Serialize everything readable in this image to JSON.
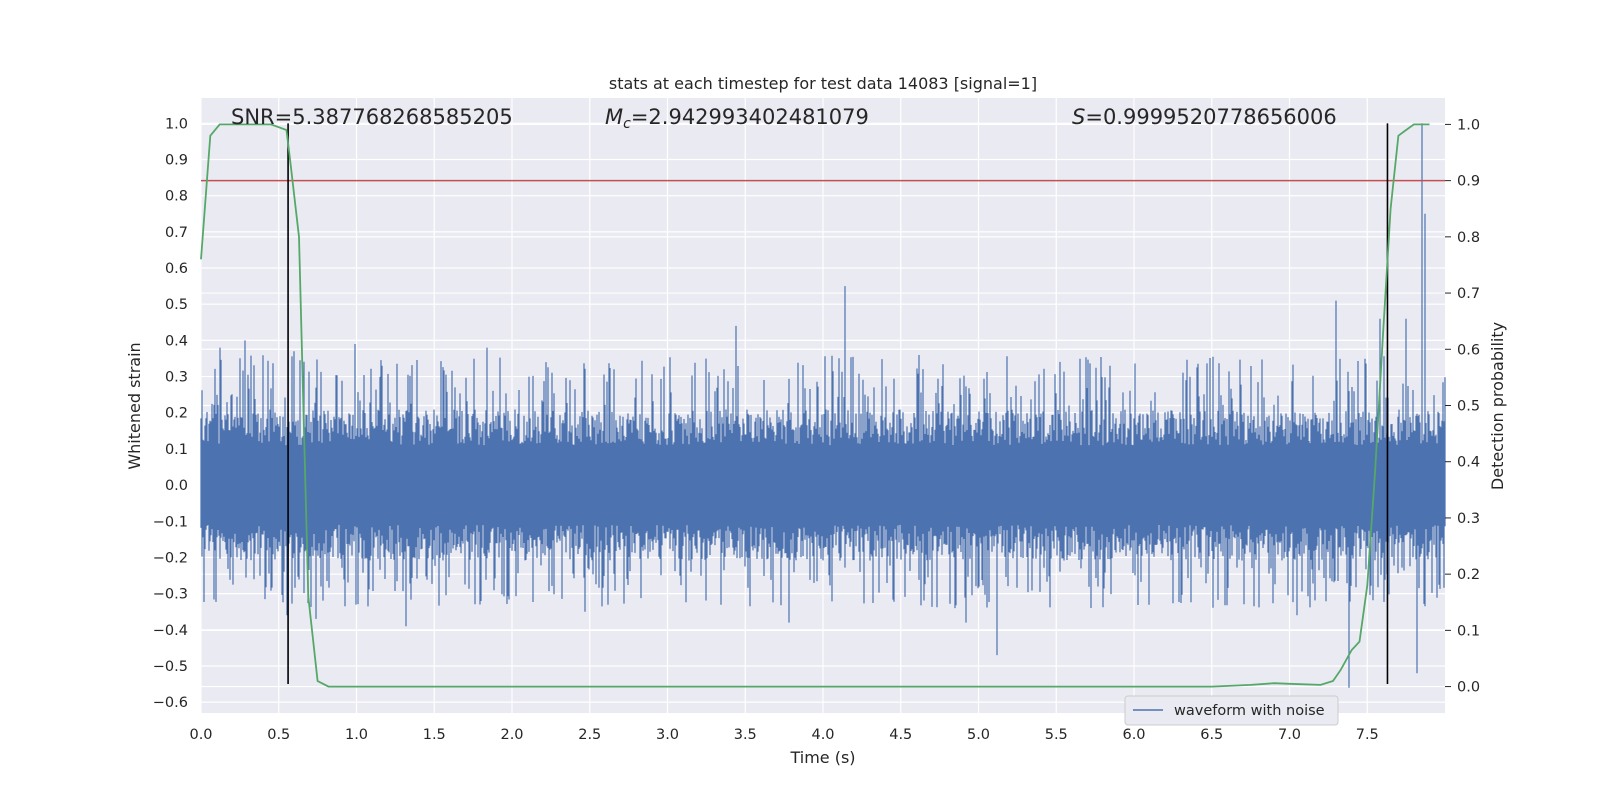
{
  "chart_data": {
    "type": "line",
    "title": "stats at each timestep for test data 14083 [signal=1]",
    "xlabel": "Time (s)",
    "ylabel": "Whitened strain",
    "y2label": "Detection probability",
    "xlim": [
      0.0,
      8.0
    ],
    "ylim": [
      -0.63,
      1.07
    ],
    "y2lim": [
      -0.047,
      1.047
    ],
    "xticks": [
      "0.0",
      "0.5",
      "1.0",
      "1.5",
      "2.0",
      "2.5",
      "3.0",
      "3.5",
      "4.0",
      "4.5",
      "5.0",
      "5.5",
      "6.0",
      "6.5",
      "7.0",
      "7.5"
    ],
    "yticks": [
      "−0.6",
      "−0.5",
      "−0.4",
      "−0.3",
      "−0.2",
      "−0.1",
      "0.0",
      "0.1",
      "0.2",
      "0.3",
      "0.4",
      "0.5",
      "0.6",
      "0.7",
      "0.8",
      "0.9",
      "1.0"
    ],
    "y2ticks": [
      "0.0",
      "0.1",
      "0.2",
      "0.3",
      "0.4",
      "0.5",
      "0.6",
      "0.7",
      "0.8",
      "0.9",
      "1.0"
    ],
    "grid": true,
    "legend": {
      "placement": "lower-right",
      "entries": [
        "waveform with noise"
      ]
    },
    "annotations": {
      "snr": "SNR=5.387768268585205",
      "mc_symbol": "M",
      "mc_sub": "c",
      "mc_value": "=2.942993402481079",
      "s_symbol": "S",
      "s_value": "=0.9999520778656006"
    },
    "threshold_line": {
      "axis": "y2",
      "value": 0.9,
      "color": "#c44e52"
    },
    "vertical_markers": {
      "x": [
        0.56,
        7.63
      ],
      "ymin": -0.55,
      "ymax": 1.0,
      "color": "#000000"
    },
    "series": [
      {
        "name": "waveform with noise",
        "axis": "y",
        "color": "#4c72b0",
        "noise": {
          "typical_amplitude": 0.11,
          "spike_amplitude": 0.22
        },
        "spikes": [
          {
            "x": 0.12,
            "y": 0.38
          },
          {
            "x": 0.28,
            "y": 0.4
          },
          {
            "x": 0.55,
            "y": -0.36
          },
          {
            "x": 0.6,
            "y": 0.37
          },
          {
            "x": 0.74,
            "y": -0.37
          },
          {
            "x": 0.99,
            "y": 0.39
          },
          {
            "x": 1.32,
            "y": -0.39
          },
          {
            "x": 1.84,
            "y": 0.38
          },
          {
            "x": 2.47,
            "y": -0.35
          },
          {
            "x": 3.44,
            "y": 0.44
          },
          {
            "x": 3.78,
            "y": -0.38
          },
          {
            "x": 4.14,
            "y": 0.55
          },
          {
            "x": 4.92,
            "y": -0.38
          },
          {
            "x": 5.12,
            "y": -0.47
          },
          {
            "x": 7.05,
            "y": -0.36
          },
          {
            "x": 7.3,
            "y": 0.51
          },
          {
            "x": 7.38,
            "y": -0.56
          },
          {
            "x": 7.58,
            "y": 0.46
          },
          {
            "x": 7.75,
            "y": 0.46
          },
          {
            "x": 7.82,
            "y": -0.52
          },
          {
            "x": 7.85,
            "y": 1.0
          },
          {
            "x": 7.87,
            "y": 0.75
          }
        ]
      },
      {
        "name": "detection probability",
        "axis": "y2",
        "color": "#55a868",
        "x": [
          0.0,
          0.06,
          0.12,
          0.25,
          0.45,
          0.55,
          0.58,
          0.63,
          0.69,
          0.75,
          0.82,
          1.0,
          2.0,
          3.0,
          4.0,
          5.0,
          6.0,
          6.5,
          6.75,
          6.9,
          7.0,
          7.2,
          7.28,
          7.33,
          7.4,
          7.45,
          7.5,
          7.55,
          7.6,
          7.65,
          7.7,
          7.75,
          7.8,
          7.9
        ],
        "y": [
          0.76,
          0.98,
          1.0,
          1.0,
          1.0,
          0.99,
          0.92,
          0.8,
          0.16,
          0.01,
          0.0,
          0.0,
          0.0,
          0.0,
          0.0,
          0.0,
          0.0,
          0.0,
          0.003,
          0.006,
          0.005,
          0.003,
          0.01,
          0.03,
          0.065,
          0.08,
          0.18,
          0.38,
          0.62,
          0.85,
          0.98,
          0.99,
          1.0,
          1.0
        ]
      }
    ]
  }
}
